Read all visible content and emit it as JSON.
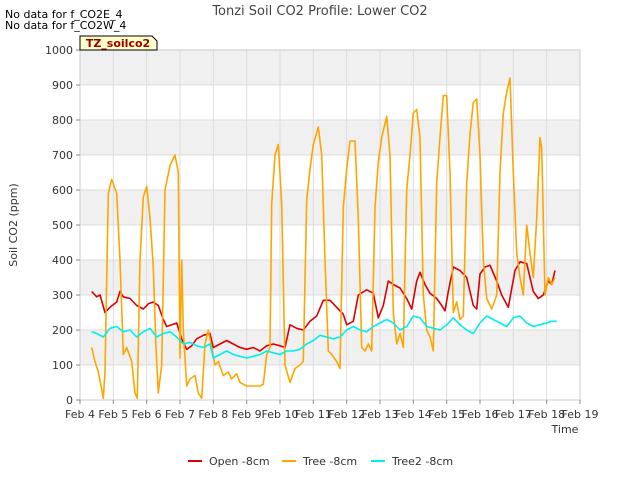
{
  "chart_data": {
    "type": "line",
    "title": "Tonzi Soil CO2 Profile: Lower CO2",
    "xlabel": "Time",
    "ylabel": "Soil CO2 (ppm)",
    "ylim": [
      0,
      1000
    ],
    "xlim": [
      4,
      19
    ],
    "yticks": [
      0,
      100,
      200,
      300,
      400,
      500,
      600,
      700,
      800,
      900,
      1000
    ],
    "xticks": [
      {
        "v": 4,
        "label": "Feb 4"
      },
      {
        "v": 5,
        "label": "Feb 5"
      },
      {
        "v": 6,
        "label": "Feb 6"
      },
      {
        "v": 7,
        "label": "Feb 7"
      },
      {
        "v": 8,
        "label": "Feb 8"
      },
      {
        "v": 9,
        "label": "Feb 9"
      },
      {
        "v": 10,
        "label": "Feb 10"
      },
      {
        "v": 11,
        "label": "Feb 11"
      },
      {
        "v": 12,
        "label": "Feb 12"
      },
      {
        "v": 13,
        "label": "Feb 13"
      },
      {
        "v": 14,
        "label": "Feb 14"
      },
      {
        "v": 15,
        "label": "Feb 15"
      },
      {
        "v": 16,
        "label": "Feb 16"
      },
      {
        "v": 17,
        "label": "Feb 17"
      },
      {
        "v": 18,
        "label": "Feb 18"
      },
      {
        "v": 19,
        "label": "Feb 19"
      }
    ],
    "annotations": [
      "No data for f_CO2E_4",
      "No data for f_CO2W_4"
    ],
    "tag_label": "TZ_soilco2",
    "legend_position": "bottom-center",
    "grid": true,
    "series": [
      {
        "name": "Open -8cm",
        "color": "#dd0000",
        "points": [
          [
            4.35,
            310
          ],
          [
            4.5,
            295
          ],
          [
            4.6,
            300
          ],
          [
            4.75,
            250
          ],
          [
            4.9,
            265
          ],
          [
            5.1,
            280
          ],
          [
            5.2,
            310
          ],
          [
            5.3,
            295
          ],
          [
            5.5,
            290
          ],
          [
            5.7,
            270
          ],
          [
            5.9,
            260
          ],
          [
            6.05,
            275
          ],
          [
            6.2,
            280
          ],
          [
            6.35,
            270
          ],
          [
            6.5,
            230
          ],
          [
            6.6,
            210
          ],
          [
            6.75,
            215
          ],
          [
            6.9,
            220
          ],
          [
            7.05,
            175
          ],
          [
            7.2,
            145
          ],
          [
            7.35,
            155
          ],
          [
            7.5,
            175
          ],
          [
            7.7,
            185
          ],
          [
            7.9,
            190
          ],
          [
            8.0,
            150
          ],
          [
            8.2,
            160
          ],
          [
            8.4,
            170
          ],
          [
            8.6,
            160
          ],
          [
            8.8,
            150
          ],
          [
            9.0,
            145
          ],
          [
            9.2,
            150
          ],
          [
            9.4,
            140
          ],
          [
            9.6,
            155
          ],
          [
            9.8,
            160
          ],
          [
            10.0,
            155
          ],
          [
            10.15,
            150
          ],
          [
            10.3,
            215
          ],
          [
            10.5,
            205
          ],
          [
            10.7,
            200
          ],
          [
            10.9,
            225
          ],
          [
            11.1,
            240
          ],
          [
            11.3,
            285
          ],
          [
            11.5,
            285
          ],
          [
            11.7,
            265
          ],
          [
            11.9,
            245
          ],
          [
            12.0,
            215
          ],
          [
            12.2,
            225
          ],
          [
            12.35,
            300
          ],
          [
            12.6,
            315
          ],
          [
            12.8,
            305
          ],
          [
            12.95,
            235
          ],
          [
            13.1,
            270
          ],
          [
            13.25,
            340
          ],
          [
            13.4,
            330
          ],
          [
            13.6,
            320
          ],
          [
            13.8,
            290
          ],
          [
            13.95,
            260
          ],
          [
            14.1,
            340
          ],
          [
            14.2,
            365
          ],
          [
            14.35,
            330
          ],
          [
            14.5,
            305
          ],
          [
            14.7,
            290
          ],
          [
            14.85,
            270
          ],
          [
            14.95,
            255
          ],
          [
            15.05,
            310
          ],
          [
            15.2,
            380
          ],
          [
            15.4,
            370
          ],
          [
            15.6,
            350
          ],
          [
            15.8,
            270
          ],
          [
            15.9,
            260
          ],
          [
            16.0,
            360
          ],
          [
            16.15,
            380
          ],
          [
            16.3,
            385
          ],
          [
            16.5,
            340
          ],
          [
            16.65,
            300
          ],
          [
            16.85,
            265
          ],
          [
            17.05,
            370
          ],
          [
            17.2,
            395
          ],
          [
            17.4,
            390
          ],
          [
            17.6,
            310
          ],
          [
            17.75,
            290
          ],
          [
            17.9,
            300
          ],
          [
            18.05,
            340
          ],
          [
            18.15,
            330
          ],
          [
            18.25,
            370
          ]
        ]
      },
      {
        "name": "Tree -8cm",
        "color": "#ffa500",
        "points": [
          [
            4.35,
            150
          ],
          [
            4.45,
            110
          ],
          [
            4.55,
            80
          ],
          [
            4.65,
            30
          ],
          [
            4.7,
            5
          ],
          [
            4.75,
            80
          ],
          [
            4.85,
            590
          ],
          [
            4.95,
            630
          ],
          [
            5.1,
            590
          ],
          [
            5.2,
            400
          ],
          [
            5.3,
            130
          ],
          [
            5.4,
            150
          ],
          [
            5.55,
            110
          ],
          [
            5.65,
            20
          ],
          [
            5.72,
            5
          ],
          [
            5.8,
            400
          ],
          [
            5.9,
            580
          ],
          [
            6.0,
            610
          ],
          [
            6.1,
            520
          ],
          [
            6.2,
            380
          ],
          [
            6.28,
            150
          ],
          [
            6.35,
            20
          ],
          [
            6.45,
            100
          ],
          [
            6.55,
            600
          ],
          [
            6.7,
            670
          ],
          [
            6.85,
            700
          ],
          [
            6.95,
            650
          ],
          [
            7.0,
            120
          ],
          [
            7.05,
            400
          ],
          [
            7.1,
            200
          ],
          [
            7.2,
            40
          ],
          [
            7.3,
            60
          ],
          [
            7.45,
            70
          ],
          [
            7.55,
            20
          ],
          [
            7.65,
            5
          ],
          [
            7.75,
            160
          ],
          [
            7.85,
            200
          ],
          [
            7.95,
            150
          ],
          [
            8.05,
            100
          ],
          [
            8.15,
            110
          ],
          [
            8.3,
            70
          ],
          [
            8.45,
            80
          ],
          [
            8.55,
            60
          ],
          [
            8.7,
            75
          ],
          [
            8.8,
            50
          ],
          [
            9.0,
            40
          ],
          [
            9.2,
            40
          ],
          [
            9.4,
            40
          ],
          [
            9.5,
            45
          ],
          [
            9.6,
            130
          ],
          [
            9.7,
            150
          ],
          [
            9.75,
            560
          ],
          [
            9.85,
            700
          ],
          [
            9.95,
            730
          ],
          [
            10.05,
            560
          ],
          [
            10.15,
            100
          ],
          [
            10.3,
            50
          ],
          [
            10.45,
            90
          ],
          [
            10.6,
            100
          ],
          [
            10.7,
            110
          ],
          [
            10.8,
            570
          ],
          [
            10.9,
            660
          ],
          [
            11.0,
            730
          ],
          [
            11.15,
            780
          ],
          [
            11.25,
            700
          ],
          [
            11.35,
            400
          ],
          [
            11.45,
            140
          ],
          [
            11.55,
            130
          ],
          [
            11.7,
            110
          ],
          [
            11.8,
            90
          ],
          [
            11.9,
            550
          ],
          [
            12.0,
            660
          ],
          [
            12.1,
            740
          ],
          [
            12.25,
            740
          ],
          [
            12.35,
            520
          ],
          [
            12.45,
            150
          ],
          [
            12.55,
            140
          ],
          [
            12.65,
            160
          ],
          [
            12.75,
            140
          ],
          [
            12.85,
            550
          ],
          [
            12.95,
            680
          ],
          [
            13.05,
            750
          ],
          [
            13.2,
            810
          ],
          [
            13.3,
            700
          ],
          [
            13.4,
            250
          ],
          [
            13.5,
            160
          ],
          [
            13.6,
            190
          ],
          [
            13.7,
            150
          ],
          [
            13.8,
            600
          ],
          [
            13.9,
            700
          ],
          [
            14.0,
            820
          ],
          [
            14.1,
            830
          ],
          [
            14.2,
            750
          ],
          [
            14.3,
            300
          ],
          [
            14.4,
            200
          ],
          [
            14.5,
            180
          ],
          [
            14.6,
            140
          ],
          [
            14.7,
            620
          ],
          [
            14.8,
            750
          ],
          [
            14.9,
            870
          ],
          [
            15.0,
            870
          ],
          [
            15.1,
            650
          ],
          [
            15.2,
            250
          ],
          [
            15.3,
            280
          ],
          [
            15.4,
            230
          ],
          [
            15.5,
            240
          ],
          [
            15.6,
            620
          ],
          [
            15.7,
            760
          ],
          [
            15.8,
            850
          ],
          [
            15.9,
            860
          ],
          [
            16.0,
            700
          ],
          [
            16.1,
            400
          ],
          [
            16.2,
            290
          ],
          [
            16.35,
            260
          ],
          [
            16.5,
            300
          ],
          [
            16.6,
            650
          ],
          [
            16.7,
            820
          ],
          [
            16.8,
            880
          ],
          [
            16.9,
            920
          ],
          [
            17.0,
            650
          ],
          [
            17.1,
            420
          ],
          [
            17.2,
            350
          ],
          [
            17.3,
            300
          ],
          [
            17.4,
            500
          ],
          [
            17.5,
            420
          ],
          [
            17.6,
            350
          ],
          [
            17.7,
            520
          ],
          [
            17.8,
            750
          ],
          [
            17.85,
            720
          ],
          [
            17.95,
            300
          ],
          [
            18.05,
            350
          ],
          [
            18.15,
            330
          ],
          [
            18.25,
            350
          ]
        ]
      },
      {
        "name": "Tree2 -8cm",
        "color": "#00eeee",
        "points": [
          [
            4.35,
            195
          ],
          [
            4.5,
            190
          ],
          [
            4.7,
            180
          ],
          [
            4.9,
            205
          ],
          [
            5.1,
            210
          ],
          [
            5.3,
            195
          ],
          [
            5.5,
            200
          ],
          [
            5.7,
            180
          ],
          [
            5.9,
            195
          ],
          [
            6.1,
            205
          ],
          [
            6.3,
            180
          ],
          [
            6.5,
            190
          ],
          [
            6.7,
            195
          ],
          [
            6.9,
            180
          ],
          [
            7.1,
            160
          ],
          [
            7.3,
            165
          ],
          [
            7.5,
            155
          ],
          [
            7.7,
            150
          ],
          [
            7.9,
            160
          ],
          [
            8.0,
            120
          ],
          [
            8.2,
            130
          ],
          [
            8.4,
            140
          ],
          [
            8.6,
            130
          ],
          [
            8.8,
            125
          ],
          [
            9.0,
            120
          ],
          [
            9.2,
            125
          ],
          [
            9.4,
            130
          ],
          [
            9.6,
            140
          ],
          [
            9.8,
            135
          ],
          [
            10.0,
            130
          ],
          [
            10.2,
            140
          ],
          [
            10.4,
            140
          ],
          [
            10.6,
            145
          ],
          [
            10.8,
            160
          ],
          [
            11.0,
            170
          ],
          [
            11.2,
            185
          ],
          [
            11.4,
            180
          ],
          [
            11.6,
            175
          ],
          [
            11.8,
            180
          ],
          [
            12.0,
            200
          ],
          [
            12.2,
            210
          ],
          [
            12.4,
            200
          ],
          [
            12.6,
            195
          ],
          [
            12.8,
            210
          ],
          [
            13.0,
            220
          ],
          [
            13.2,
            230
          ],
          [
            13.4,
            220
          ],
          [
            13.6,
            200
          ],
          [
            13.8,
            210
          ],
          [
            14.0,
            240
          ],
          [
            14.2,
            235
          ],
          [
            14.4,
            210
          ],
          [
            14.6,
            205
          ],
          [
            14.8,
            200
          ],
          [
            15.0,
            215
          ],
          [
            15.2,
            235
          ],
          [
            15.4,
            215
          ],
          [
            15.6,
            200
          ],
          [
            15.8,
            190
          ],
          [
            16.0,
            220
          ],
          [
            16.2,
            240
          ],
          [
            16.4,
            230
          ],
          [
            16.6,
            220
          ],
          [
            16.8,
            210
          ],
          [
            17.0,
            235
          ],
          [
            17.2,
            240
          ],
          [
            17.4,
            220
          ],
          [
            17.6,
            210
          ],
          [
            17.8,
            215
          ],
          [
            18.0,
            220
          ],
          [
            18.15,
            225
          ],
          [
            18.3,
            225
          ]
        ]
      }
    ]
  }
}
